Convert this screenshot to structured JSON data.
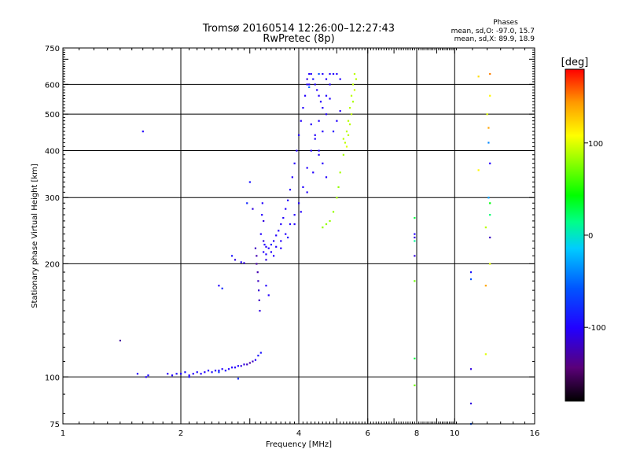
{
  "chart_data": {
    "type": "scatter",
    "title": "Tromsø 20160514 12:26:00–12:27:43",
    "subtitle": "RwPretec (8p)",
    "xlabel": "Frequency [MHz]",
    "ylabel": "Stationary phase Virtual Height [km]",
    "x_scale": "log",
    "y_scale": "log",
    "xlim": [
      1,
      16
    ],
    "ylim": [
      75,
      750
    ],
    "x_ticks": [
      1,
      2,
      4,
      6,
      8,
      10,
      16
    ],
    "x_tick_labels": [
      "1",
      "2",
      "4",
      "6",
      "8",
      "10",
      "16"
    ],
    "y_ticks": [
      75,
      100,
      200,
      300,
      400,
      500,
      600,
      750
    ],
    "y_tick_labels": [
      "75",
      "100",
      "200",
      "300",
      "400",
      "500",
      "600",
      "750"
    ],
    "grid": true,
    "stats": {
      "heading": "Phases",
      "line_o": "mean, sd,O: -97.0, 15.7",
      "line_x": "mean, sd,X: 89.9, 18.9"
    },
    "colorbar": {
      "label": "[deg]",
      "range": [
        -180,
        180
      ],
      "ticks": [
        100,
        0,
        -100
      ],
      "tick_labels": [
        "100",
        "0",
        "-100"
      ]
    },
    "series": [
      {
        "points": [
          [
            1.85,
            102,
            -100
          ],
          [
            1.9,
            101,
            -100
          ],
          [
            1.95,
            102,
            -95
          ],
          [
            2.0,
            102,
            -100
          ],
          [
            2.05,
            103,
            -90
          ],
          [
            2.1,
            101,
            -100
          ],
          [
            2.15,
            102,
            -100
          ],
          [
            2.2,
            103,
            -95
          ],
          [
            2.25,
            102,
            -100
          ],
          [
            2.3,
            103,
            -100
          ],
          [
            2.35,
            104,
            -100
          ],
          [
            2.4,
            103,
            -95
          ],
          [
            2.45,
            104,
            -100
          ],
          [
            2.5,
            104,
            -100
          ],
          [
            2.55,
            105,
            -100
          ],
          [
            2.6,
            104,
            -95
          ],
          [
            2.65,
            105,
            -100
          ],
          [
            2.7,
            106,
            -100
          ],
          [
            2.75,
            106,
            -100
          ],
          [
            2.8,
            107,
            -100
          ],
          [
            2.85,
            107,
            -110
          ],
          [
            2.9,
            108,
            -110
          ],
          [
            2.95,
            108,
            -120
          ],
          [
            3.0,
            109,
            -130
          ],
          [
            3.05,
            110,
            -120
          ],
          [
            3.1,
            111,
            -100
          ],
          [
            3.15,
            114,
            -90
          ],
          [
            3.2,
            116,
            -90
          ],
          [
            1.55,
            102,
            -100
          ],
          [
            1.65,
            101,
            -95
          ],
          [
            1.63,
            100,
            -100
          ],
          [
            2.1,
            100,
            -90
          ],
          [
            2.5,
            103,
            -70
          ],
          [
            2.8,
            99,
            -80
          ],
          [
            1.4,
            125,
            -130
          ],
          [
            1.6,
            450,
            -100
          ],
          [
            2.5,
            175,
            -100
          ],
          [
            2.55,
            172,
            -80
          ],
          [
            2.7,
            210,
            -90
          ],
          [
            2.75,
            205,
            -110
          ],
          [
            2.85,
            202,
            -100
          ],
          [
            2.9,
            201,
            -110
          ],
          [
            3.1,
            220,
            -120
          ],
          [
            3.12,
            210,
            -125
          ],
          [
            3.12,
            200,
            -130
          ],
          [
            3.14,
            190,
            -125
          ],
          [
            3.15,
            180,
            -120
          ],
          [
            3.16,
            170,
            -115
          ],
          [
            3.17,
            160,
            -120
          ],
          [
            3.18,
            150,
            -110
          ],
          [
            3.2,
            240,
            -100
          ],
          [
            3.22,
            270,
            -100
          ],
          [
            3.23,
            290,
            -100
          ],
          [
            3.25,
            260,
            -110
          ],
          [
            3.25,
            230,
            -110
          ],
          [
            3.27,
            225,
            -100
          ],
          [
            3.3,
            222,
            -100
          ],
          [
            3.35,
            220,
            -100
          ],
          [
            3.4,
            225,
            -100
          ],
          [
            3.45,
            230,
            -100
          ],
          [
            3.5,
            238,
            -100
          ],
          [
            3.55,
            245,
            -100
          ],
          [
            3.6,
            255,
            -100
          ],
          [
            3.65,
            265,
            -100
          ],
          [
            3.7,
            280,
            -100
          ],
          [
            3.75,
            295,
            -100
          ],
          [
            3.8,
            315,
            -100
          ],
          [
            3.85,
            340,
            -100
          ],
          [
            3.9,
            370,
            -100
          ],
          [
            3.95,
            400,
            -100
          ],
          [
            4.0,
            440,
            -100
          ],
          [
            4.05,
            480,
            -100
          ],
          [
            4.1,
            520,
            -100
          ],
          [
            4.15,
            560,
            -100
          ],
          [
            4.2,
            600,
            -100
          ],
          [
            4.25,
            640,
            -100
          ],
          [
            3.25,
            215,
            -100
          ],
          [
            3.3,
            212,
            -100
          ],
          [
            3.4,
            215,
            -100
          ],
          [
            3.5,
            222,
            -100
          ],
          [
            3.6,
            230,
            -100
          ],
          [
            3.7,
            240,
            -100
          ],
          [
            3.8,
            255,
            -100
          ],
          [
            3.9,
            270,
            -100
          ],
          [
            4.0,
            290,
            -100
          ],
          [
            4.1,
            320,
            -100
          ],
          [
            4.2,
            360,
            -100
          ],
          [
            4.3,
            400,
            -100
          ],
          [
            4.4,
            440,
            -100
          ],
          [
            4.5,
            480,
            -100
          ],
          [
            4.6,
            520,
            -100
          ],
          [
            4.7,
            560,
            -100
          ],
          [
            4.8,
            600,
            -100
          ],
          [
            4.9,
            640,
            -100
          ],
          [
            3.3,
            205,
            -110
          ],
          [
            3.45,
            210,
            -100
          ],
          [
            3.6,
            220,
            -100
          ],
          [
            3.75,
            235,
            -100
          ],
          [
            3.9,
            255,
            -100
          ],
          [
            4.05,
            275,
            -100
          ],
          [
            4.2,
            310,
            -100
          ],
          [
            4.35,
            350,
            -100
          ],
          [
            4.5,
            400,
            -100
          ],
          [
            4.6,
            450,
            -100
          ],
          [
            4.7,
            500,
            -100
          ],
          [
            4.8,
            550,
            -100
          ],
          [
            4.3,
            640,
            -100
          ],
          [
            4.35,
            620,
            -90
          ],
          [
            4.4,
            600,
            -100
          ],
          [
            4.45,
            580,
            -100
          ],
          [
            4.5,
            560,
            -100
          ],
          [
            4.55,
            540,
            -100
          ],
          [
            4.2,
            620,
            -110
          ],
          [
            4.25,
            600,
            -100
          ],
          [
            4.6,
            640,
            -100
          ],
          [
            4.7,
            620,
            -100
          ],
          [
            4.8,
            640,
            -100
          ],
          [
            5.0,
            640,
            -100
          ],
          [
            5.1,
            620,
            -100
          ],
          [
            4.3,
            470,
            -100
          ],
          [
            4.4,
            430,
            -100
          ],
          [
            4.5,
            390,
            -100
          ],
          [
            4.6,
            370,
            -100
          ],
          [
            4.7,
            340,
            -100
          ],
          [
            5.0,
            480,
            -100
          ],
          [
            5.1,
            510,
            -100
          ],
          [
            4.9,
            450,
            -100
          ],
          [
            4.5,
            640,
            -60
          ],
          [
            4.25,
            590,
            -50
          ],
          [
            3.3,
            175,
            -100
          ],
          [
            3.35,
            165,
            -100
          ],
          [
            3.0,
            330,
            -90
          ],
          [
            2.95,
            290,
            -80
          ],
          [
            3.05,
            280,
            -110
          ],
          [
            4.6,
            250,
            80
          ],
          [
            4.7,
            255,
            80
          ],
          [
            4.8,
            260,
            80
          ],
          [
            4.9,
            275,
            80
          ],
          [
            5.0,
            300,
            85
          ],
          [
            5.05,
            320,
            80
          ],
          [
            5.1,
            350,
            85
          ],
          [
            5.2,
            390,
            85
          ],
          [
            5.25,
            420,
            90
          ],
          [
            5.3,
            450,
            90
          ],
          [
            5.35,
            480,
            90
          ],
          [
            5.4,
            520,
            90
          ],
          [
            5.45,
            560,
            90
          ],
          [
            5.5,
            600,
            90
          ],
          [
            5.55,
            640,
            90
          ],
          [
            5.45,
            500,
            90
          ],
          [
            5.5,
            540,
            85
          ],
          [
            5.35,
            440,
            90
          ],
          [
            5.6,
            620,
            90
          ],
          [
            5.3,
            410,
            100
          ],
          [
            5.2,
            430,
            90
          ],
          [
            5.4,
            470,
            90
          ],
          [
            5.55,
            580,
            95
          ],
          [
            7.9,
            265,
            30
          ],
          [
            7.9,
            240,
            -100
          ],
          [
            7.9,
            235,
            -110
          ],
          [
            7.9,
            230,
            10
          ],
          [
            7.9,
            210,
            -110
          ],
          [
            7.9,
            180,
            70
          ],
          [
            7.9,
            112,
            30
          ],
          [
            7.9,
            95,
            70
          ],
          [
            11.5,
            630,
            120
          ],
          [
            12.3,
            640,
            150
          ],
          [
            12.3,
            560,
            110
          ],
          [
            11.5,
            355,
            110
          ],
          [
            12.2,
            460,
            140
          ],
          [
            12.1,
            500,
            100
          ],
          [
            12.2,
            420,
            -40
          ],
          [
            12.3,
            370,
            -100
          ],
          [
            12.2,
            300,
            -30
          ],
          [
            12.3,
            290,
            40
          ],
          [
            12.3,
            270,
            20
          ],
          [
            12.0,
            250,
            90
          ],
          [
            12.3,
            235,
            -120
          ],
          [
            12.3,
            200,
            100
          ],
          [
            11.0,
            190,
            -90
          ],
          [
            11.0,
            182,
            -60
          ],
          [
            12.0,
            175,
            140
          ],
          [
            11.0,
            105,
            -110
          ],
          [
            11.0,
            85,
            -110
          ],
          [
            12.0,
            115,
            100
          ],
          [
            11.0,
            75,
            -60
          ]
        ]
      }
    ]
  }
}
